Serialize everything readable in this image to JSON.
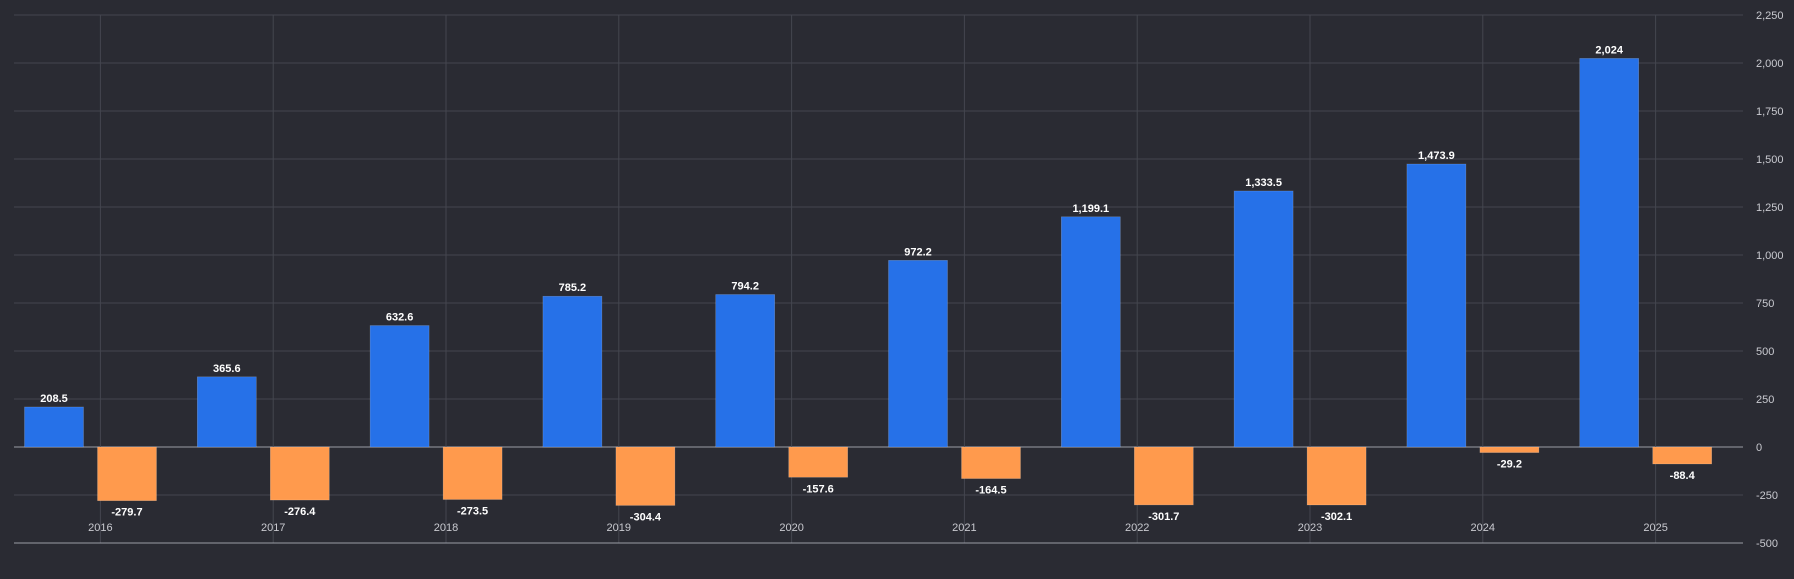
{
  "chart_data": {
    "type": "bar",
    "categories": [
      "2016",
      "2017",
      "2018",
      "2019",
      "2020",
      "2021",
      "2022",
      "2023",
      "2024",
      "2025"
    ],
    "series": [
      {
        "color": "#2671e8",
        "values": [
          208.5,
          365.6,
          632.6,
          785.2,
          794.2,
          972.2,
          1199.1,
          1333.5,
          1473.9,
          2024
        ]
      },
      {
        "color": "#ff9a4d",
        "values": [
          -279.7,
          -276.4,
          -273.5,
          -304.4,
          -157.6,
          -164.5,
          -301.7,
          -302.1,
          -29.2,
          -88.4
        ]
      }
    ],
    "value_labels": [
      [
        "208.5",
        "365.6",
        "632.6",
        "785.2",
        "794.2",
        "972.2",
        "1,199.1",
        "1,333.5",
        "1,473.9",
        "2,024"
      ],
      [
        "-279.7",
        "-276.4",
        "-273.5",
        "-304.4",
        "-157.6",
        "-164.5",
        "-301.7",
        "-302.1",
        "-29.2",
        "-88.4"
      ]
    ],
    "ylim": [
      -500,
      2250
    ],
    "yticks": [
      2250,
      2000,
      1750,
      1500,
      1250,
      1000,
      750,
      500,
      250,
      0,
      -250,
      -500
    ],
    "ytick_labels": [
      "2,250",
      "2,000",
      "1,750",
      "1,500",
      "1,250",
      "1,000",
      "750",
      "500",
      "250",
      "0",
      "-250",
      "-500"
    ],
    "y_axis_side": "right",
    "grid": true
  }
}
